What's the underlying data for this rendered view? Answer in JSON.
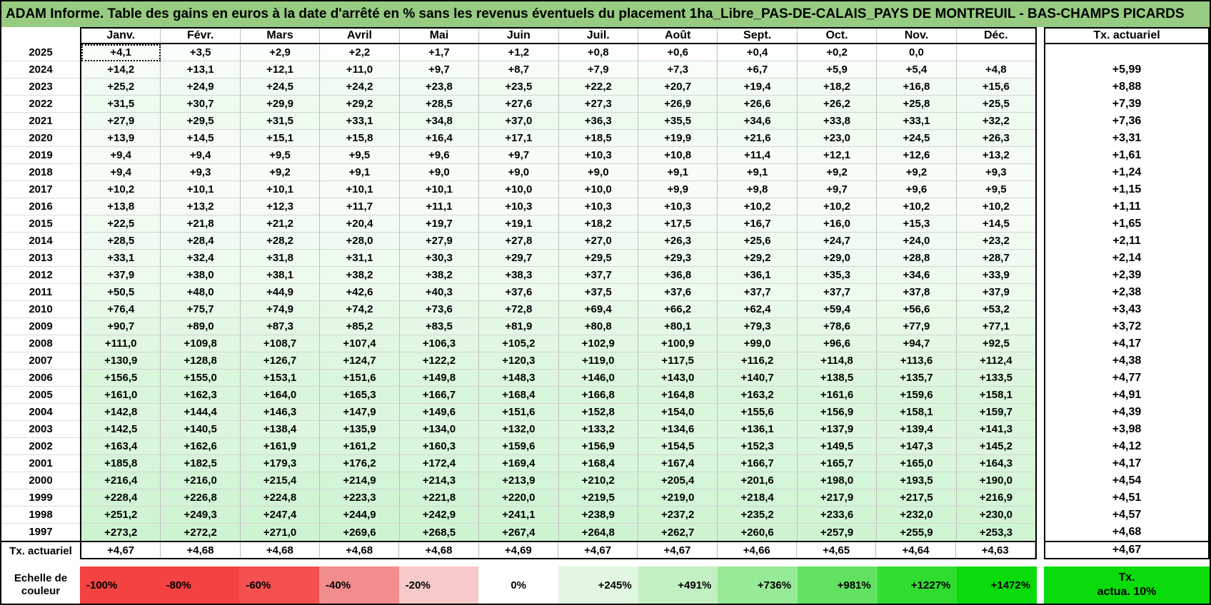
{
  "title": "ADAM Informe. Table des gains en euros à la date d'arrêté en % sans les revenus éventuels du placement 1ha_Libre_PAS-DE-CALAIS_PAYS DE MONTREUIL - BAS-CHAMPS PICARDS",
  "colors": {
    "title_bg": "#96CB81",
    "grid_line": "#BFBFBF",
    "border": "#000000"
  },
  "months": [
    "Janv.",
    "Févr.",
    "Mars",
    "Avril",
    "Mai",
    "Juin",
    "Juil.",
    "Août",
    "Sept.",
    "Oct.",
    "Nov.",
    "Déc."
  ],
  "tx_header": "Tx. actuariel",
  "rows": [
    {
      "year": "2025",
      "values": [
        "+4,1",
        "+3,5",
        "+2,9",
        "+2,2",
        "+1,7",
        "+1,2",
        "+0,8",
        "+0,6",
        "+0,4",
        "+0,2",
        "0,0",
        ""
      ],
      "tx": ""
    },
    {
      "year": "2024",
      "values": [
        "+14,2",
        "+13,1",
        "+12,1",
        "+11,0",
        "+9,7",
        "+8,7",
        "+7,9",
        "+7,3",
        "+6,7",
        "+5,9",
        "+5,4",
        "+4,8"
      ],
      "tx": "+5,99"
    },
    {
      "year": "2023",
      "values": [
        "+25,2",
        "+24,9",
        "+24,5",
        "+24,2",
        "+23,8",
        "+23,5",
        "+22,2",
        "+20,7",
        "+19,4",
        "+18,2",
        "+16,8",
        "+15,6"
      ],
      "tx": "+8,88"
    },
    {
      "year": "2022",
      "values": [
        "+31,5",
        "+30,7",
        "+29,9",
        "+29,2",
        "+28,5",
        "+27,6",
        "+27,3",
        "+26,9",
        "+26,6",
        "+26,2",
        "+25,8",
        "+25,5"
      ],
      "tx": "+7,39"
    },
    {
      "year": "2021",
      "values": [
        "+27,9",
        "+29,5",
        "+31,5",
        "+33,1",
        "+34,8",
        "+37,0",
        "+36,3",
        "+35,5",
        "+34,6",
        "+33,8",
        "+33,1",
        "+32,2"
      ],
      "tx": "+7,36"
    },
    {
      "year": "2020",
      "values": [
        "+13,9",
        "+14,5",
        "+15,1",
        "+15,8",
        "+16,4",
        "+17,1",
        "+18,5",
        "+19,9",
        "+21,6",
        "+23,0",
        "+24,5",
        "+26,3"
      ],
      "tx": "+3,31"
    },
    {
      "year": "2019",
      "values": [
        "+9,4",
        "+9,4",
        "+9,5",
        "+9,5",
        "+9,6",
        "+9,7",
        "+10,3",
        "+10,8",
        "+11,4",
        "+12,1",
        "+12,6",
        "+13,2"
      ],
      "tx": "+1,61"
    },
    {
      "year": "2018",
      "values": [
        "+9,4",
        "+9,3",
        "+9,2",
        "+9,1",
        "+9,0",
        "+9,0",
        "+9,0",
        "+9,1",
        "+9,1",
        "+9,2",
        "+9,2",
        "+9,3"
      ],
      "tx": "+1,24"
    },
    {
      "year": "2017",
      "values": [
        "+10,2",
        "+10,1",
        "+10,1",
        "+10,1",
        "+10,1",
        "+10,0",
        "+10,0",
        "+9,9",
        "+9,8",
        "+9,7",
        "+9,6",
        "+9,5"
      ],
      "tx": "+1,15"
    },
    {
      "year": "2016",
      "values": [
        "+13,8",
        "+13,2",
        "+12,3",
        "+11,7",
        "+11,1",
        "+10,3",
        "+10,3",
        "+10,3",
        "+10,2",
        "+10,2",
        "+10,2",
        "+10,2"
      ],
      "tx": "+1,11"
    },
    {
      "year": "2015",
      "values": [
        "+22,5",
        "+21,8",
        "+21,2",
        "+20,4",
        "+19,7",
        "+19,1",
        "+18,2",
        "+17,5",
        "+16,7",
        "+16,0",
        "+15,3",
        "+14,5"
      ],
      "tx": "+1,65"
    },
    {
      "year": "2014",
      "values": [
        "+28,5",
        "+28,4",
        "+28,2",
        "+28,0",
        "+27,9",
        "+27,8",
        "+27,0",
        "+26,3",
        "+25,6",
        "+24,7",
        "+24,0",
        "+23,2"
      ],
      "tx": "+2,11"
    },
    {
      "year": "2013",
      "values": [
        "+33,1",
        "+32,4",
        "+31,8",
        "+31,1",
        "+30,3",
        "+29,7",
        "+29,5",
        "+29,3",
        "+29,2",
        "+29,0",
        "+28,8",
        "+28,7"
      ],
      "tx": "+2,14"
    },
    {
      "year": "2012",
      "values": [
        "+37,9",
        "+38,0",
        "+38,1",
        "+38,2",
        "+38,2",
        "+38,3",
        "+37,7",
        "+36,8",
        "+36,1",
        "+35,3",
        "+34,6",
        "+33,9"
      ],
      "tx": "+2,39"
    },
    {
      "year": "2011",
      "values": [
        "+50,5",
        "+48,0",
        "+44,9",
        "+42,6",
        "+40,3",
        "+37,6",
        "+37,5",
        "+37,6",
        "+37,7",
        "+37,7",
        "+37,8",
        "+37,9"
      ],
      "tx": "+2,38"
    },
    {
      "year": "2010",
      "values": [
        "+76,4",
        "+75,7",
        "+74,9",
        "+74,2",
        "+73,6",
        "+72,8",
        "+69,4",
        "+66,2",
        "+62,4",
        "+59,4",
        "+56,6",
        "+53,2"
      ],
      "tx": "+3,43"
    },
    {
      "year": "2009",
      "values": [
        "+90,7",
        "+89,0",
        "+87,3",
        "+85,2",
        "+83,5",
        "+81,9",
        "+80,8",
        "+80,1",
        "+79,3",
        "+78,6",
        "+77,9",
        "+77,1"
      ],
      "tx": "+3,72"
    },
    {
      "year": "2008",
      "values": [
        "+111,0",
        "+109,8",
        "+108,7",
        "+107,4",
        "+106,3",
        "+105,2",
        "+102,9",
        "+100,9",
        "+99,0",
        "+96,6",
        "+94,7",
        "+92,5"
      ],
      "tx": "+4,17"
    },
    {
      "year": "2007",
      "values": [
        "+130,9",
        "+128,8",
        "+126,7",
        "+124,7",
        "+122,2",
        "+120,3",
        "+119,0",
        "+117,5",
        "+116,2",
        "+114,8",
        "+113,6",
        "+112,4"
      ],
      "tx": "+4,38"
    },
    {
      "year": "2006",
      "values": [
        "+156,5",
        "+155,0",
        "+153,1",
        "+151,6",
        "+149,8",
        "+148,3",
        "+146,0",
        "+143,0",
        "+140,7",
        "+138,5",
        "+135,7",
        "+133,5"
      ],
      "tx": "+4,77"
    },
    {
      "year": "2005",
      "values": [
        "+161,0",
        "+162,3",
        "+164,0",
        "+165,3",
        "+166,7",
        "+168,4",
        "+166,8",
        "+164,8",
        "+163,2",
        "+161,6",
        "+159,6",
        "+158,1"
      ],
      "tx": "+4,91"
    },
    {
      "year": "2004",
      "values": [
        "+142,8",
        "+144,4",
        "+146,3",
        "+147,9",
        "+149,6",
        "+151,6",
        "+152,8",
        "+154,0",
        "+155,6",
        "+156,9",
        "+158,1",
        "+159,7"
      ],
      "tx": "+4,39"
    },
    {
      "year": "2003",
      "values": [
        "+142,5",
        "+140,5",
        "+138,4",
        "+135,9",
        "+134,0",
        "+132,0",
        "+133,2",
        "+134,6",
        "+136,1",
        "+137,9",
        "+139,4",
        "+141,3"
      ],
      "tx": "+3,98"
    },
    {
      "year": "2002",
      "values": [
        "+163,4",
        "+162,6",
        "+161,9",
        "+161,2",
        "+160,3",
        "+159,6",
        "+156,9",
        "+154,5",
        "+152,3",
        "+149,5",
        "+147,3",
        "+145,2"
      ],
      "tx": "+4,12"
    },
    {
      "year": "2001",
      "values": [
        "+185,8",
        "+182,5",
        "+179,3",
        "+176,2",
        "+172,4",
        "+169,4",
        "+168,4",
        "+167,4",
        "+166,7",
        "+165,7",
        "+165,0",
        "+164,3"
      ],
      "tx": "+4,17"
    },
    {
      "year": "2000",
      "values": [
        "+216,4",
        "+216,0",
        "+215,4",
        "+214,9",
        "+214,3",
        "+213,9",
        "+210,2",
        "+205,4",
        "+201,6",
        "+198,0",
        "+193,5",
        "+190,0"
      ],
      "tx": "+4,54"
    },
    {
      "year": "1999",
      "values": [
        "+228,4",
        "+226,8",
        "+224,8",
        "+223,3",
        "+221,8",
        "+220,0",
        "+219,5",
        "+219,0",
        "+218,4",
        "+217,9",
        "+217,5",
        "+216,9"
      ],
      "tx": "+4,51"
    },
    {
      "year": "1998",
      "values": [
        "+251,2",
        "+249,3",
        "+247,4",
        "+244,9",
        "+242,9",
        "+241,1",
        "+238,9",
        "+237,2",
        "+235,2",
        "+233,6",
        "+232,0",
        "+230,0"
      ],
      "tx": "+4,57"
    },
    {
      "year": "1997",
      "values": [
        "+273,2",
        "+272,2",
        "+271,0",
        "+269,6",
        "+268,5",
        "+267,4",
        "+264,8",
        "+262,7",
        "+260,6",
        "+257,9",
        "+255,9",
        "+253,3"
      ],
      "tx": "+4,68"
    }
  ],
  "tx_row": {
    "label": "Tx. actuariel",
    "values": [
      "+4,67",
      "+4,68",
      "+4,68",
      "+4,68",
      "+4,68",
      "+4,69",
      "+4,67",
      "+4,67",
      "+4,66",
      "+4,65",
      "+4,64",
      "+4,63"
    ],
    "tx": "+4,67"
  },
  "scale": {
    "label": "Echelle de couleur",
    "cells": [
      {
        "label": "-100%",
        "color": "#F44242",
        "align": "left"
      },
      {
        "label": "-80%",
        "color": "#F44242",
        "align": "left"
      },
      {
        "label": "-60%",
        "color": "#F45050",
        "align": "left"
      },
      {
        "label": "-40%",
        "color": "#F18D8D",
        "align": "left"
      },
      {
        "label": "-20%",
        "color": "#F8C9C9",
        "align": "left"
      },
      {
        "label": "0%",
        "color": "#FFFFFF",
        "align": "center"
      },
      {
        "label": "+245%",
        "color": "#E2F7E2",
        "align": "right"
      },
      {
        "label": "+491%",
        "color": "#C3F0C3",
        "align": "right"
      },
      {
        "label": "+736%",
        "color": "#97EA97",
        "align": "right"
      },
      {
        "label": "+981%",
        "color": "#62E262",
        "align": "right"
      },
      {
        "label": "+1227%",
        "color": "#30DC30",
        "align": "right"
      },
      {
        "label": "+1472%",
        "color": "#0ADB0A",
        "align": "right"
      }
    ],
    "tx_cell": {
      "line1": "Tx.",
      "line2": "actua. 10%",
      "color": "#0ADB0A"
    }
  }
}
